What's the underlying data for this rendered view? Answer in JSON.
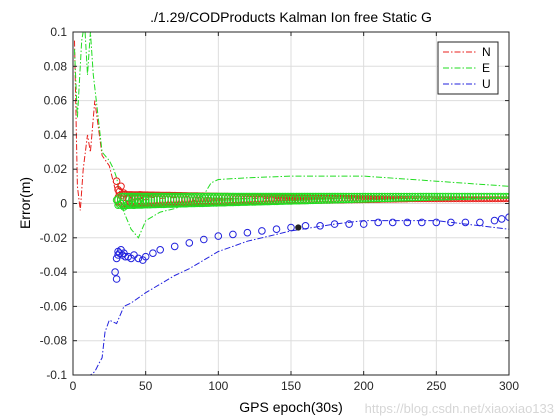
{
  "watermark": "https://blog.csdn.net/xiaoxiao133",
  "chart_data": {
    "type": "line",
    "title": "./1.29/CODProducts Kalman Ion free Static G",
    "xlabel": "GPS epoch(30s)",
    "ylabel": "Error(m)",
    "xlim": [
      0,
      300
    ],
    "ylim": [
      -0.1,
      0.1
    ],
    "xticks": [
      0,
      50,
      100,
      150,
      200,
      250,
      300
    ],
    "xtick_labels": [
      "0",
      "50",
      "100",
      "150",
      "200",
      "250",
      "300"
    ],
    "yticks": [
      -0.1,
      -0.08,
      -0.06,
      -0.04,
      -0.02,
      0,
      0.02,
      0.04,
      0.06,
      0.08,
      0.1
    ],
    "ytick_labels": [
      "-0.1",
      "-0.08",
      "-0.06",
      "-0.04",
      "-0.02",
      "0",
      "0.02",
      "0.04",
      "0.06",
      "0.08",
      "0.1"
    ],
    "grid": true,
    "legend_position": "top-right",
    "series": [
      {
        "name": "N",
        "color": "#e8201c",
        "style": "dash-dot",
        "x": [
          1,
          3,
          5,
          7,
          10,
          12,
          15,
          20,
          25,
          30,
          35,
          40,
          50,
          60,
          80,
          100,
          150,
          200,
          250,
          300
        ],
        "y": [
          0.095,
          0.01,
          -0.004,
          0.02,
          0.04,
          0.03,
          0.06,
          0.028,
          0.022,
          0.005,
          0.002,
          0.0,
          0.004,
          0.003,
          0.004,
          0.003,
          0.003,
          0.003,
          0.003,
          0.003
        ]
      },
      {
        "name": "E",
        "color": "#22dd22",
        "style": "dash-dot",
        "x": [
          1,
          3,
          6,
          8,
          10,
          12,
          14,
          16,
          20,
          25,
          28,
          30,
          35,
          40,
          45,
          50,
          60,
          70,
          80,
          90,
          95,
          100,
          120,
          150,
          200,
          250,
          300
        ],
        "y": [
          0.09,
          0.05,
          0.095,
          0.105,
          0.075,
          0.1,
          0.075,
          0.06,
          0.03,
          0.025,
          0.02,
          0.015,
          -0.005,
          -0.015,
          -0.02,
          -0.01,
          -0.005,
          -0.003,
          0.0,
          0.005,
          0.012,
          0.014,
          0.015,
          0.016,
          0.016,
          0.013,
          0.01
        ]
      },
      {
        "name": "U",
        "color": "#2222dd",
        "style": "dash-dot",
        "x": [
          1,
          3,
          6,
          9,
          12,
          15,
          18,
          20,
          22,
          25,
          30,
          35,
          40,
          50,
          60,
          70,
          80,
          90,
          100,
          110,
          120,
          130,
          150,
          180,
          200,
          250,
          300
        ],
        "y": [
          -0.1,
          -0.1,
          -0.1,
          -0.1,
          -0.1,
          -0.098,
          -0.093,
          -0.09,
          -0.075,
          -0.068,
          -0.07,
          -0.06,
          -0.058,
          -0.052,
          -0.047,
          -0.042,
          -0.038,
          -0.033,
          -0.028,
          -0.025,
          -0.022,
          -0.02,
          -0.016,
          -0.012,
          -0.01,
          -0.01,
          -0.015
        ]
      }
    ],
    "marker_series": [
      {
        "name": "N markers",
        "color": "#e8201c",
        "marker": "circle",
        "x": [
          30,
          31,
          32,
          33,
          35,
          38,
          42,
          46,
          50
        ],
        "y": [
          0.013,
          0.008,
          0.007,
          0.01,
          0.006,
          0.003,
          0.004,
          0.005,
          0.004
        ],
        "band_x": [
          34,
          300
        ],
        "band_y": [
          [
            0.007,
            -0.002
          ],
          [
            0.003,
            0.002
          ]
        ]
      },
      {
        "name": "E markers",
        "color": "#22dd22",
        "marker": "circle",
        "x": [
          30,
          31,
          33,
          35,
          38,
          42,
          45,
          50
        ],
        "y": [
          0.002,
          -0.001,
          0.0,
          -0.002,
          0.0,
          -0.001,
          0.001,
          0.002
        ],
        "band_x": [
          34,
          300
        ],
        "band_y": [
          [
            0.006,
            -0.003
          ],
          [
            0.006,
            0.003
          ]
        ]
      },
      {
        "name": "U markers",
        "color": "#2222dd",
        "marker": "circle",
        "x": [
          29,
          30,
          30,
          31,
          31,
          32,
          33,
          34,
          35,
          36,
          38,
          40,
          42,
          45,
          48,
          50,
          55,
          60,
          70,
          80,
          90,
          100,
          110,
          120,
          130,
          140,
          150,
          160,
          170,
          180,
          190,
          200,
          210,
          220,
          230,
          240,
          250,
          260,
          270,
          280,
          290,
          295,
          300
        ],
        "y": [
          -0.04,
          -0.044,
          -0.032,
          -0.03,
          -0.028,
          -0.029,
          -0.027,
          -0.03,
          -0.029,
          -0.031,
          -0.031,
          -0.032,
          -0.03,
          -0.032,
          -0.033,
          -0.031,
          -0.029,
          -0.027,
          -0.025,
          -0.023,
          -0.021,
          -0.019,
          -0.018,
          -0.017,
          -0.016,
          -0.015,
          -0.014,
          -0.013,
          -0.013,
          -0.012,
          -0.012,
          -0.012,
          -0.011,
          -0.011,
          -0.011,
          -0.011,
          -0.011,
          -0.011,
          -0.011,
          -0.011,
          -0.01,
          -0.009,
          -0.008
        ]
      }
    ]
  }
}
